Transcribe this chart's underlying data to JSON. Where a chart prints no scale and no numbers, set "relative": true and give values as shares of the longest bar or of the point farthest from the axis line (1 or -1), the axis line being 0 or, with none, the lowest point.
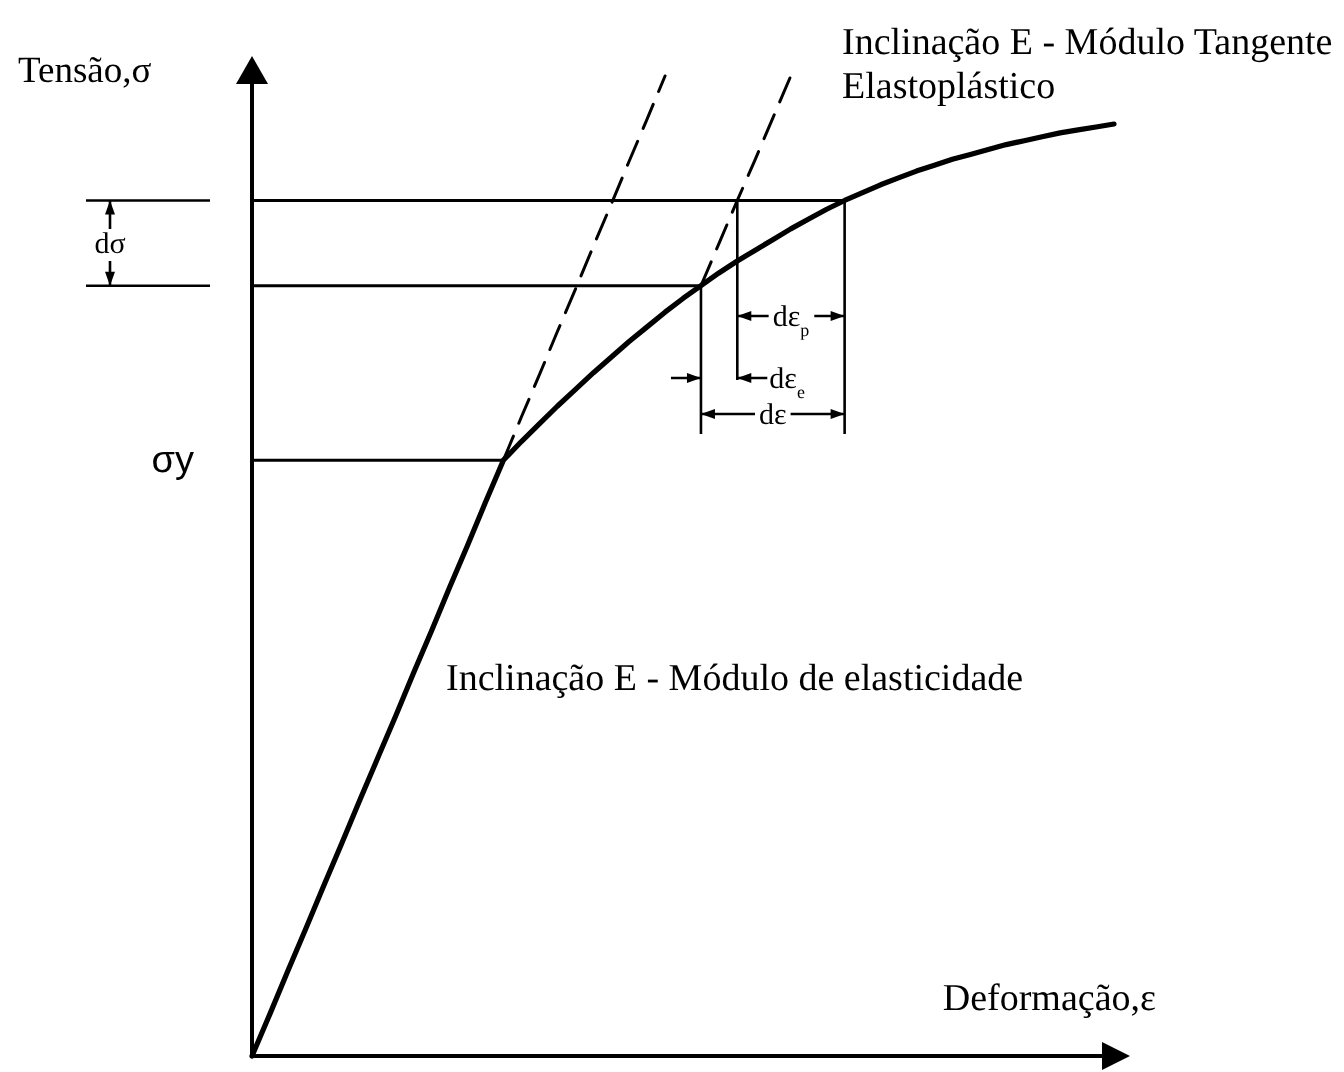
{
  "chart_data": {
    "type": "line",
    "relative": true,
    "line_style": "solid",
    "xlabel": "Deformação,ε",
    "ylabel": "Tensão,σ",
    "categories": [
      null,
      null,
      null,
      null,
      null,
      null,
      null,
      null,
      null,
      null,
      null,
      null,
      null,
      null,
      null,
      null,
      null,
      null,
      null,
      null,
      null,
      null,
      null,
      null,
      null,
      null,
      null,
      null,
      null,
      null,
      null,
      null,
      null,
      null,
      null,
      null,
      null,
      null,
      null,
      null,
      null,
      null,
      null,
      null,
      null,
      null,
      null,
      null,
      null
    ],
    "series": [
      {
        "color": "#000000",
        "values": [
          0,
          0.043,
          0.087,
          0.13,
          0.174,
          0.217,
          0.261,
          0.304,
          0.347,
          0.391,
          0.434,
          0.478,
          0.521,
          0.565,
          0.608,
          0.627,
          0.645,
          0.663,
          0.68,
          0.697,
          0.713,
          0.729,
          0.744,
          0.759,
          0.773,
          0.786,
          0.799,
          0.811,
          0.822,
          0.833,
          0.844,
          0.854,
          0.864,
          0.873,
          0.881,
          0.889,
          0.896,
          0.903,
          0.909,
          0.915,
          0.92,
          0.925,
          0.93,
          0.934,
          0.938,
          0.942,
          0.945,
          0.948,
          0.951
        ]
      },
      {
        "color": "#000000",
        "line_style": "dashed",
        "values": [
          null,
          null,
          null,
          null,
          null,
          null,
          null,
          null,
          null,
          null,
          null,
          null,
          null,
          null,
          0.608,
          0.652,
          0.695,
          0.739,
          0.782,
          0.826,
          0.869,
          0.913,
          0.956,
          1,
          null,
          null,
          null,
          null,
          null,
          null,
          null,
          null,
          null,
          null,
          null,
          null,
          null,
          null,
          null,
          null,
          null,
          null,
          null,
          null,
          null,
          null,
          null,
          null,
          null
        ]
      },
      {
        "color": "#000000",
        "line_style": "dashed",
        "values": [
          null,
          null,
          null,
          null,
          null,
          null,
          null,
          null,
          null,
          null,
          null,
          null,
          null,
          null,
          null,
          null,
          null,
          null,
          null,
          null,
          null,
          null,
          null,
          null,
          null,
          0.786,
          0.829,
          0.872,
          0.914,
          0.957,
          1,
          null,
          null,
          null,
          null,
          null,
          null,
          null,
          null,
          null,
          null,
          null,
          null,
          null,
          null,
          null,
          null,
          null,
          null
        ]
      }
    ],
    "ref_lines": [
      {
        "axis": "y",
        "value": 0.608,
        "label": "σy"
      },
      {
        "axis": "y",
        "value": 0.786
      },
      {
        "axis": "y",
        "value": 0.873
      }
    ],
    "annotations": [
      "Inclinação E - Módulo Tangente Elastoplástico",
      "Inclinação E - Módulo de elasticidade",
      "dσ",
      "dε$_{p}$",
      "dε$_{e}$",
      "dε"
    ]
  }
}
